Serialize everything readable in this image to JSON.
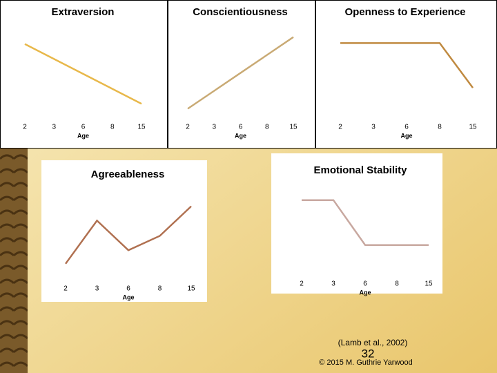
{
  "chart_data": [
    {
      "type": "line",
      "title": "Extraversion",
      "categories": [
        "2",
        "3",
        "6",
        "8",
        "15"
      ],
      "x_label": "Age",
      "values": [
        80,
        65,
        50,
        35,
        20
      ],
      "color": "#e8b84a",
      "ylim": [
        0,
        100
      ]
    },
    {
      "type": "line",
      "title": "Conscientiousness",
      "categories": [
        "2",
        "3",
        "6",
        "8",
        "15"
      ],
      "x_label": "Age",
      "values": [
        15,
        33,
        51,
        69,
        87
      ],
      "color": "#c9aa74",
      "ylim": [
        0,
        100
      ]
    },
    {
      "type": "line",
      "title": "Openness to Experience",
      "categories": [
        "2",
        "3",
        "6",
        "8",
        "15"
      ],
      "x_label": "Age",
      "values": [
        81,
        81,
        81,
        81,
        36
      ],
      "color": "#c08a40",
      "ylim": [
        0,
        100
      ]
    },
    {
      "type": "line",
      "title": "Agreeableness",
      "categories": [
        "2",
        "3",
        "6",
        "8",
        "15"
      ],
      "x_label": "Age",
      "values": [
        14,
        62,
        29,
        45,
        78
      ],
      "color": "#b07050",
      "ylim": [
        0,
        100
      ]
    },
    {
      "type": "line",
      "title": "Emotional Stability",
      "categories": [
        "2",
        "3",
        "6",
        "8",
        "15"
      ],
      "x_label": "Age",
      "values": [
        81,
        81,
        31,
        31,
        31
      ],
      "color": "#c8a8a0",
      "ylim": [
        0,
        100
      ]
    }
  ],
  "footer": {
    "citation": "(Lamb et al., 2002)",
    "slide_number": "32",
    "copyright": "© 2015 M. Guthrie Yarwood"
  }
}
